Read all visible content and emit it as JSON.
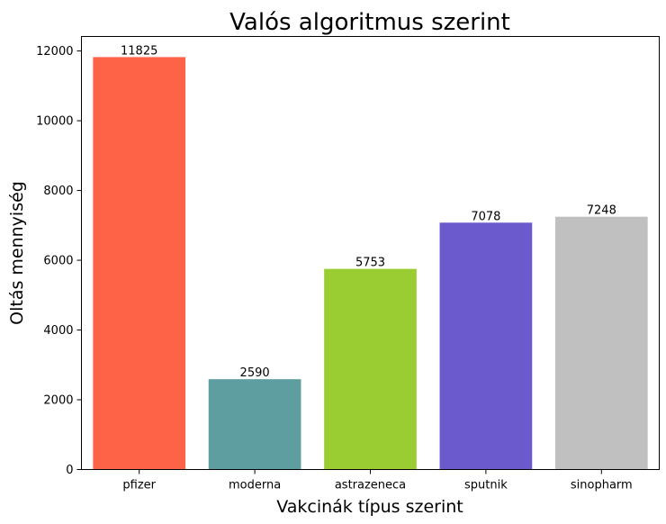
{
  "chart_data": {
    "type": "bar",
    "title": "Valós algoritmus szerint",
    "xlabel": "Vakcinák típus szerint",
    "ylabel": "Oltás mennyiség",
    "categories": [
      "pfizer",
      "moderna",
      "astrazeneca",
      "sputnik",
      "sinopharm"
    ],
    "values": [
      11825,
      2590,
      5753,
      7078,
      7248
    ],
    "data_labels": [
      "11825",
      "2590",
      "5753",
      "7078",
      "7248"
    ],
    "colors": [
      "#ff6347",
      "#5f9ea0",
      "#9acd32",
      "#6a5acd",
      "#c0c0c0"
    ],
    "ylim": [
      0,
      12416
    ],
    "yticks": [
      0,
      2000,
      4000,
      6000,
      8000,
      10000,
      12000
    ],
    "grid": false,
    "legend": "none"
  }
}
